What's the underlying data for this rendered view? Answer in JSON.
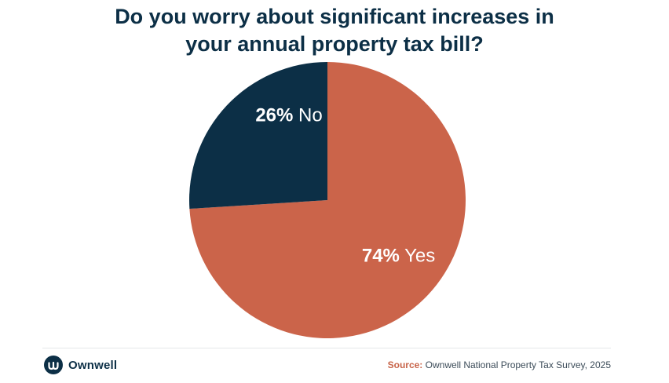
{
  "title_lines": [
    "Do you worry about significant increases in",
    "your annual property tax bill?"
  ],
  "chart_data": {
    "type": "pie",
    "title": "Do you worry about significant increases in your annual property tax bill?",
    "slices": [
      {
        "label": "No",
        "percent_text": "26%",
        "value": 26,
        "color": "#0c2f46"
      },
      {
        "label": "Yes",
        "percent_text": "74%",
        "value": 74,
        "color": "#cb644a"
      }
    ]
  },
  "footer": {
    "brand": "Ownwell",
    "logo_icon": "ownwell-w-icon",
    "source_label": "Source:",
    "source_text": "Ownwell National Property Tax Survey, 2025"
  }
}
